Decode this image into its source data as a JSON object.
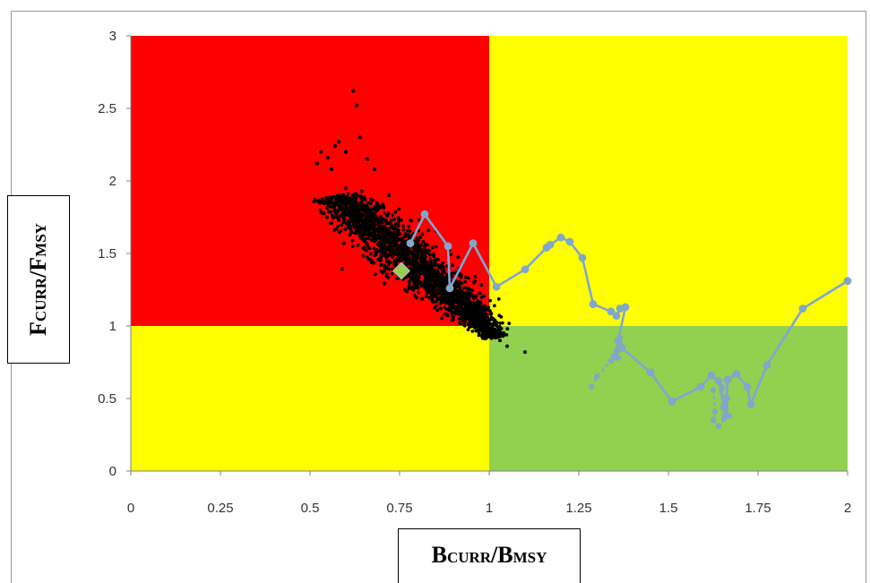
{
  "chart_data": {
    "type": "scatter",
    "title": "",
    "xlabel": {
      "main": "B",
      "sub": "CURR",
      "sep": "/",
      "main2": "B",
      "sub2": "MSY"
    },
    "ylabel": {
      "main": "F",
      "sub": "CURR",
      "sep": "/",
      "main2": "F",
      "sub2": "MSY"
    },
    "xlim": [
      0,
      2
    ],
    "ylim": [
      0,
      3
    ],
    "x_ticks": [
      0,
      0.25,
      0.5,
      0.75,
      1,
      1.25,
      1.5,
      1.75,
      2
    ],
    "x_tick_labels": [
      "0",
      "0.25",
      "0.5",
      "0.75",
      "1",
      "1.25",
      "1.5",
      "1.75",
      "2"
    ],
    "y_ticks": [
      0,
      0.5,
      1,
      1.5,
      2,
      2.5,
      3
    ],
    "y_tick_labels": [
      "0",
      "0.5",
      "1",
      "1.5",
      "2",
      "2.5",
      "3"
    ],
    "grid": false,
    "zones": [
      {
        "x": [
          0,
          1
        ],
        "y": [
          1,
          3
        ],
        "color": "#ff0000"
      },
      {
        "x": [
          1,
          2
        ],
        "y": [
          1,
          3
        ],
        "color": "#ffff00"
      },
      {
        "x": [
          0,
          1
        ],
        "y": [
          0,
          1
        ],
        "color": "#ffff00"
      },
      {
        "x": [
          1,
          2
        ],
        "y": [
          0,
          1
        ],
        "color": "#92d050"
      }
    ],
    "series": [
      {
        "marker": "dot",
        "color": "#000000",
        "cloud": {
          "center": [
            0.7,
            1.5
          ],
          "axis_from": [
            0.58,
            1.9
          ],
          "axis_to": [
            1.02,
            0.92
          ],
          "spread": 0.045,
          "n": 2200
        },
        "values": [
          [
            0.62,
            2.62
          ],
          [
            0.63,
            2.52
          ],
          [
            0.64,
            2.3
          ],
          [
            0.58,
            2.27
          ],
          [
            0.52,
            2.12
          ],
          [
            0.53,
            2.2
          ],
          [
            0.57,
            2.24
          ],
          [
            0.55,
            2.16
          ],
          [
            0.6,
            2.2
          ],
          [
            0.66,
            2.15
          ],
          [
            0.56,
            2.08
          ],
          [
            0.68,
            2.08
          ],
          [
            1.0,
            1.04
          ],
          [
            1.05,
            0.86
          ],
          [
            1.1,
            0.82
          ],
          [
            1.03,
            0.9
          ],
          [
            0.98,
            0.93
          ],
          [
            0.6,
            1.95
          ],
          [
            0.56,
            1.85
          ],
          [
            0.72,
            1.9
          ]
        ]
      },
      {
        "marker": "diamond",
        "color": "#92d050",
        "values": [
          [
            0.755,
            1.38
          ]
        ]
      },
      {
        "marker": "circle",
        "color": "#7ea6d8",
        "line": true,
        "values": [
          [
            0.78,
            1.57
          ],
          [
            0.82,
            1.77
          ],
          [
            0.885,
            1.55
          ],
          [
            0.89,
            1.26
          ],
          [
            0.955,
            1.57
          ],
          [
            1.02,
            1.27
          ],
          [
            1.1,
            1.39
          ],
          [
            1.16,
            1.54
          ],
          [
            1.17,
            1.56
          ],
          [
            1.2,
            1.61
          ],
          [
            1.225,
            1.58
          ],
          [
            1.26,
            1.47
          ],
          [
            1.29,
            1.15
          ],
          [
            1.34,
            1.1
          ],
          [
            1.355,
            1.07
          ],
          [
            1.365,
            1.12
          ],
          [
            1.38,
            1.13
          ],
          [
            1.36,
            0.9
          ],
          [
            1.35,
            0.79
          ],
          [
            1.37,
            0.85
          ],
          [
            1.45,
            0.68
          ],
          [
            1.51,
            0.48
          ],
          [
            1.59,
            0.58
          ],
          [
            1.62,
            0.66
          ],
          [
            1.64,
            0.62
          ],
          [
            1.655,
            0.44
          ],
          [
            1.66,
            0.38
          ],
          [
            1.665,
            0.63
          ],
          [
            1.69,
            0.67
          ],
          [
            1.72,
            0.58
          ],
          [
            1.73,
            0.46
          ],
          [
            1.775,
            0.73
          ],
          [
            1.875,
            1.12
          ],
          [
            2.0,
            1.31
          ]
        ]
      },
      {
        "marker": "circle",
        "color": "#7ea6d8",
        "line": true,
        "dashed": true,
        "values": [
          [
            1.285,
            0.58
          ],
          [
            1.3,
            0.65
          ],
          [
            1.34,
            0.76
          ],
          [
            1.355,
            0.83
          ],
          [
            1.36,
            0.78
          ],
          [
            1.36,
            0.85
          ],
          [
            1.365,
            0.88
          ],
          [
            1.365,
            0.92
          ]
        ]
      },
      {
        "marker": "circle",
        "color": "#7ea6d8",
        "line": true,
        "dashed": true,
        "values": [
          [
            1.625,
            0.56
          ],
          [
            1.63,
            0.41
          ],
          [
            1.625,
            0.35
          ],
          [
            1.64,
            0.31
          ],
          [
            1.655,
            0.36
          ],
          [
            1.66,
            0.48
          ],
          [
            1.65,
            0.58
          ],
          [
            1.66,
            0.45
          ],
          [
            1.67,
            0.38
          ],
          [
            1.66,
            0.42
          ],
          [
            1.665,
            0.5
          ]
        ]
      }
    ]
  }
}
